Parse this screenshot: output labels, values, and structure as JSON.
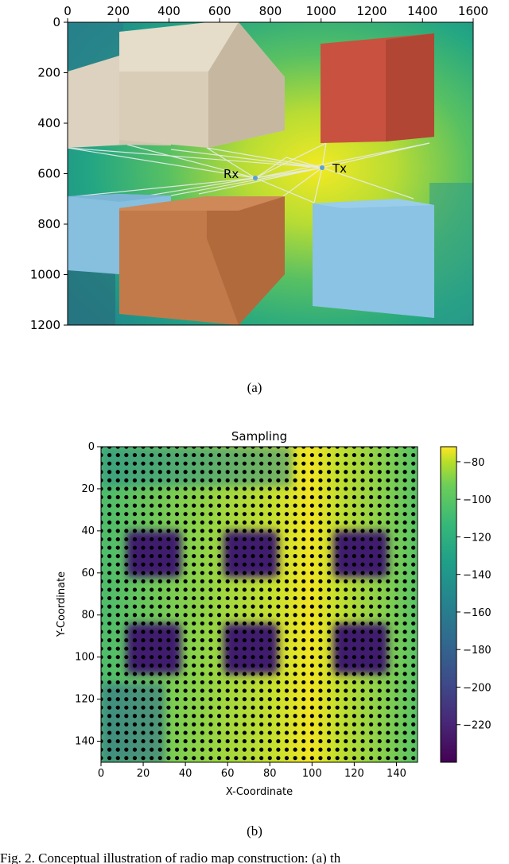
{
  "figure_a": {
    "caption": "(a)",
    "labels": {
      "rx": "Rx",
      "tx": "Tx"
    },
    "chart_data": {
      "type": "image",
      "x_ticks": [
        "0",
        "200",
        "400",
        "600",
        "800",
        "1000",
        "1200",
        "1400",
        "1600"
      ],
      "y_ticks": [
        "0",
        "200",
        "400",
        "600",
        "800",
        "1000",
        "1200"
      ],
      "xlim": [
        0,
        1600
      ],
      "ylim": [
        1200,
        0
      ],
      "rx": {
        "x": 750,
        "y": 620,
        "label": "Rx"
      },
      "tx": {
        "x": 1010,
        "y": 580,
        "label": "Tx"
      },
      "colors": {
        "buildings": [
          "#dcd2bf",
          "#d9cdb8",
          "#c8523f",
          "#87bfdf",
          "#c27a4a",
          "#8ac3e4"
        ]
      }
    }
  },
  "figure_b": {
    "caption": "(b)",
    "chart_data": {
      "type": "heatmap",
      "title": "Sampling",
      "xlabel": "X-Coordinate",
      "ylabel": "Y-Coordinate",
      "xlim": [
        0,
        150
      ],
      "ylim": [
        150,
        0
      ],
      "x_ticks": [
        "0",
        "20",
        "40",
        "60",
        "80",
        "100",
        "120",
        "140"
      ],
      "y_ticks": [
        "0",
        "20",
        "40",
        "60",
        "80",
        "100",
        "120",
        "140"
      ],
      "colorbar": {
        "ticks": [
          "−80",
          "−100",
          "−120",
          "−140",
          "−160",
          "−180",
          "−200",
          "−220"
        ],
        "range": [
          -240,
          -72
        ],
        "colormap": "viridis"
      },
      "sample_spacing": 4,
      "low_signal_blocks": [
        {
          "x": [
            12,
            38
          ],
          "y": [
            40,
            62
          ]
        },
        {
          "x": [
            58,
            84
          ],
          "y": [
            40,
            62
          ]
        },
        {
          "x": [
            110,
            136
          ],
          "y": [
            40,
            62
          ]
        },
        {
          "x": [
            12,
            38
          ],
          "y": [
            84,
            108
          ]
        },
        {
          "x": [
            58,
            84
          ],
          "y": [
            84,
            108
          ]
        },
        {
          "x": [
            110,
            136
          ],
          "y": [
            84,
            108
          ]
        }
      ]
    }
  },
  "bottom_caption": "Fig. 2.  Conceptual illustration of radio map construction: (a) th"
}
